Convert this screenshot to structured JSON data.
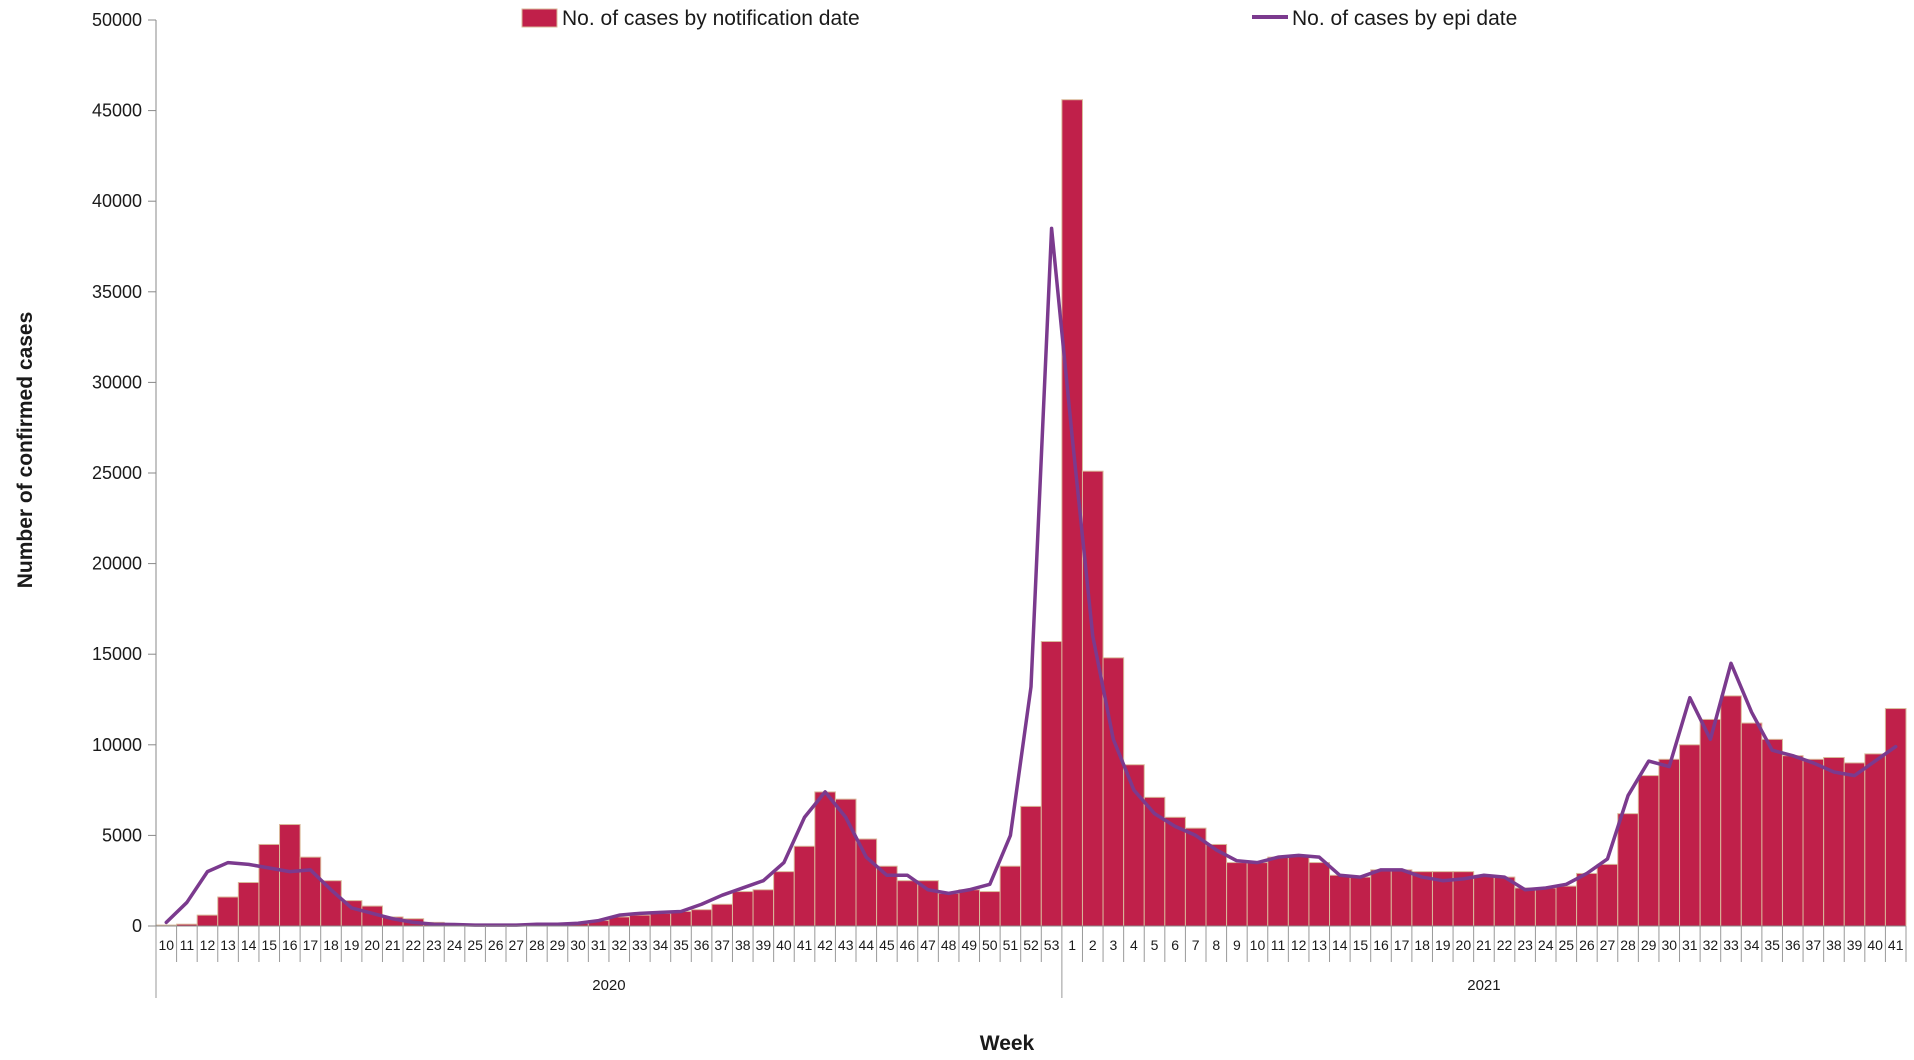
{
  "chart_data": {
    "type": "bar",
    "xlabel": "Week",
    "ylabel": "Number of confirmed cases",
    "ylim": [
      0,
      50000
    ],
    "yticks": [
      0,
      5000,
      10000,
      15000,
      20000,
      25000,
      30000,
      35000,
      40000,
      45000,
      50000
    ],
    "categories": [
      "10",
      "11",
      "12",
      "13",
      "14",
      "15",
      "16",
      "17",
      "18",
      "19",
      "20",
      "21",
      "22",
      "23",
      "24",
      "25",
      "26",
      "27",
      "28",
      "29",
      "30",
      "31",
      "32",
      "33",
      "34",
      "35",
      "36",
      "37",
      "38",
      "39",
      "40",
      "41",
      "42",
      "43",
      "44",
      "45",
      "46",
      "47",
      "48",
      "49",
      "50",
      "51",
      "52",
      "53",
      "1",
      "2",
      "3",
      "4",
      "5",
      "6",
      "7",
      "8",
      "9",
      "10",
      "11",
      "12",
      "13",
      "14",
      "15",
      "16",
      "17",
      "18",
      "19",
      "20",
      "21",
      "22",
      "23",
      "24",
      "25",
      "26",
      "27",
      "28",
      "29",
      "30",
      "31",
      "32",
      "33",
      "34",
      "35",
      "36",
      "37",
      "38",
      "39",
      "40",
      "41"
    ],
    "groups": [
      {
        "label": "2020",
        "count": 44
      },
      {
        "label": "2021",
        "count": 41
      }
    ],
    "series": [
      {
        "name": "No. of cases by notification date",
        "type": "bar",
        "color": "#C0204A",
        "values": [
          50,
          100,
          600,
          1600,
          2400,
          4500,
          5600,
          3800,
          2500,
          1400,
          1100,
          500,
          400,
          200,
          100,
          50,
          50,
          50,
          100,
          100,
          150,
          300,
          500,
          600,
          700,
          800,
          900,
          1200,
          1900,
          2000,
          3000,
          4400,
          7400,
          7000,
          4800,
          3300,
          2500,
          2500,
          1800,
          2000,
          1900,
          3300,
          6600,
          15700,
          45600,
          25100,
          14800,
          8900,
          7100,
          6000,
          5400,
          4500,
          3500,
          3500,
          3800,
          3900,
          3500,
          2800,
          2700,
          3100,
          3100,
          3000,
          3000,
          3000,
          2800,
          2700,
          2100,
          2100,
          2200,
          2900,
          3400,
          6200,
          8300,
          9200,
          10000,
          11400,
          12700,
          11200,
          10300,
          9400,
          9200,
          9300,
          9000,
          9500,
          12000
        ]
      },
      {
        "name": "No. of cases by epi date",
        "type": "line",
        "color": "#7B3A8E",
        "values": [
          200,
          1300,
          3000,
          3500,
          3400,
          3200,
          3000,
          3100,
          2000,
          1000,
          700,
          400,
          200,
          100,
          80,
          50,
          50,
          50,
          100,
          100,
          150,
          300,
          600,
          700,
          750,
          800,
          1200,
          1700,
          2100,
          2500,
          3500,
          6000,
          7400,
          6000,
          3800,
          2800,
          2800,
          2000,
          1800,
          2000,
          2300,
          5000,
          13200,
          38500,
          27000,
          16000,
          10300,
          7500,
          6200,
          5500,
          5000,
          4200,
          3600,
          3500,
          3800,
          3900,
          3800,
          2800,
          2700,
          3100,
          3100,
          2700,
          2500,
          2600,
          2800,
          2700,
          2000,
          2100,
          2300,
          2900,
          3700,
          7200,
          9100,
          8800,
          12600,
          10300,
          14500,
          11800,
          9700,
          9400,
          9000,
          8500,
          8300,
          9100,
          9900
        ]
      }
    ],
    "legend": {
      "placement": "top-center"
    },
    "grid": false
  }
}
